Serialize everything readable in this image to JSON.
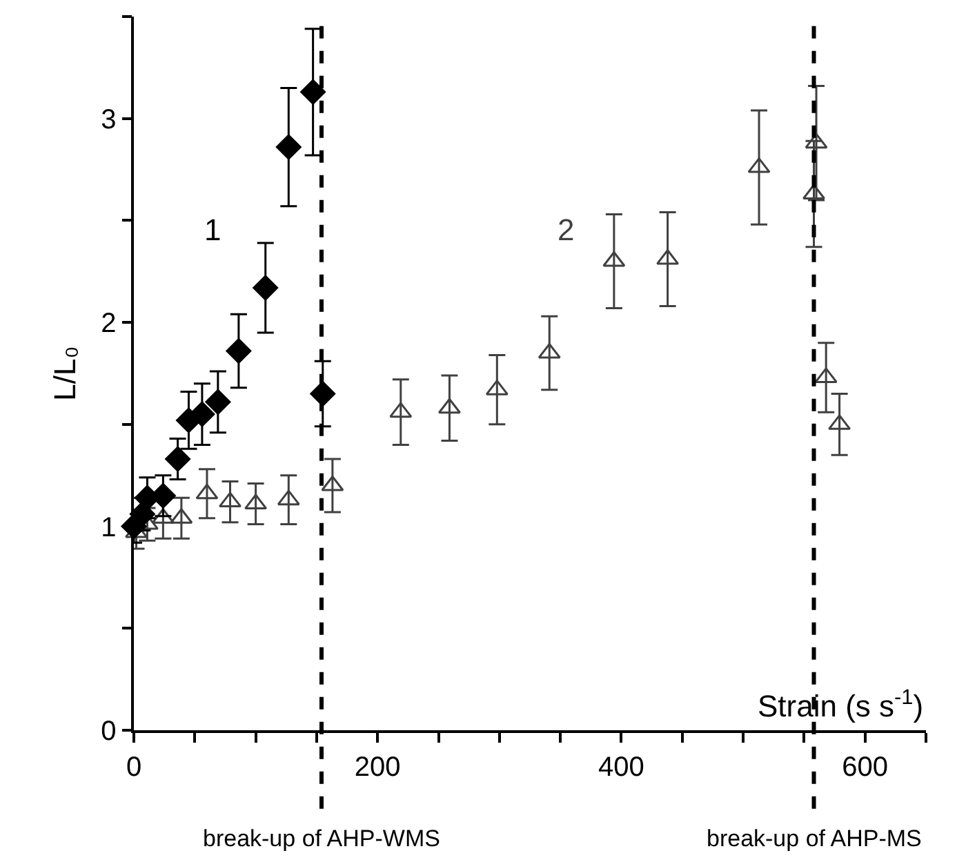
{
  "chart_data": {
    "type": "scatter",
    "ylabel": "L/L₀",
    "xlabel": "Strain (s s$^{-1}$)",
    "xlim": [
      0,
      650
    ],
    "ylim": [
      0,
      3.5
    ],
    "xticks": [
      0,
      {
        "value": 50,
        "label": null
      },
      {
        "value": 100,
        "label": null
      },
      {
        "value": 150,
        "label": null
      },
      200,
      {
        "value": 250,
        "label": null
      },
      {
        "value": 300,
        "label": null
      },
      {
        "value": 350,
        "label": null
      },
      400,
      {
        "value": 450,
        "label": null
      },
      {
        "value": 500,
        "label": null
      },
      {
        "value": 550,
        "label": null
      },
      600,
      {
        "value": 650,
        "label": null
      }
    ],
    "yticks": [
      0,
      {
        "value": 0.5,
        "label": null
      },
      1,
      {
        "value": 1.5,
        "label": null
      },
      2,
      {
        "value": 2.5,
        "label": null
      },
      3,
      {
        "value": 3.5,
        "label": null
      }
    ],
    "legend": false,
    "series": [
      {
        "name": "1",
        "color": "#000000",
        "marker": "diamond",
        "x": [
          0,
          7,
          11,
          24,
          36,
          45,
          56,
          69,
          86,
          108,
          127,
          147,
          155
        ],
        "values": [
          1.0,
          1.06,
          1.14,
          1.15,
          1.33,
          1.52,
          1.55,
          1.61,
          1.86,
          2.17,
          2.86,
          3.13,
          1.65
        ],
        "errors": [
          0.08,
          0.08,
          0.1,
          0.1,
          0.1,
          0.14,
          0.15,
          0.15,
          0.18,
          0.22,
          0.29,
          0.31,
          0.16
        ]
      },
      {
        "name": "2",
        "color": "#404040",
        "marker": "triangle",
        "x": [
          2,
          11,
          24,
          39,
          60,
          79,
          100,
          127,
          163,
          219,
          259,
          298,
          341,
          394,
          438,
          513,
          560,
          558,
          568,
          579
        ],
        "values": [
          0.97,
          1.01,
          1.04,
          1.04,
          1.16,
          1.12,
          1.11,
          1.13,
          1.2,
          1.56,
          1.58,
          1.67,
          1.85,
          2.3,
          2.31,
          2.76,
          2.88,
          2.63,
          1.73,
          1.5
        ],
        "errors": [
          0.08,
          0.08,
          0.1,
          0.1,
          0.12,
          0.1,
          0.1,
          0.12,
          0.13,
          0.16,
          0.16,
          0.17,
          0.18,
          0.23,
          0.23,
          0.28,
          0.28,
          0.26,
          0.17,
          0.15
        ]
      }
    ],
    "ref_lines": [
      {
        "axis": "x",
        "value": 154,
        "label": "break-up of AHP-WMS",
        "color": "#000000",
        "line_style": "dashed"
      },
      {
        "axis": "x",
        "value": 558,
        "label": "break-up of AHP-MS",
        "color": "#000000",
        "line_style": "dashed"
      }
    ]
  }
}
